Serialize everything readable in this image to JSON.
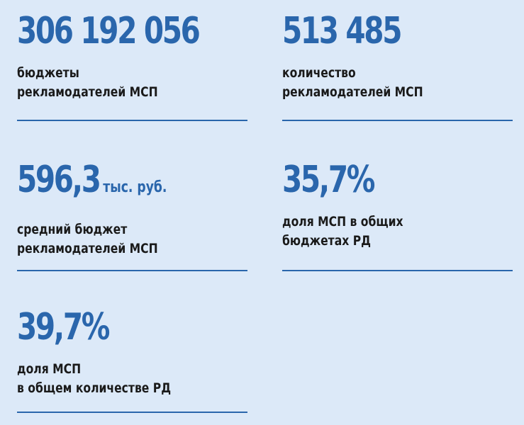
{
  "stats": [
    {
      "value": "306 192 056",
      "unit": "",
      "label_line1": "бюджеты",
      "label_line2": "рекламодателей МСП"
    },
    {
      "value": "513 485",
      "unit": "",
      "label_line1": "количество",
      "label_line2": "рекламодателей МСП"
    },
    {
      "value": "596,3",
      "unit": "тыс. руб.",
      "label_line1": "средний бюджет",
      "label_line2": "рекламодателей МСП"
    },
    {
      "value": "35,7%",
      "unit": "",
      "label_line1": "доля МСП в общих",
      "label_line2": "бюджетах РД"
    },
    {
      "value": "39,7%",
      "unit": "",
      "label_line1": "доля МСП",
      "label_line2": "в общем количестве РД"
    }
  ],
  "colors": {
    "background": "#dce9f8",
    "accent": "#2a66ac",
    "text": "#1a1a1a"
  }
}
